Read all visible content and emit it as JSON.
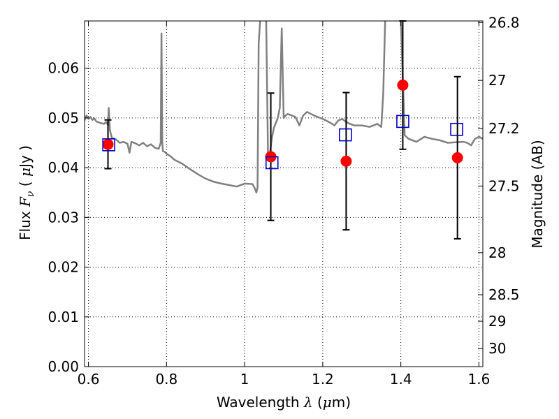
{
  "chart_data": {
    "type": "scatter",
    "xlabel": {
      "prefix": "Wavelength",
      "symbol": "λ",
      "unit_open": " (",
      "unit_mu": "μ",
      "unit_rest": "m)"
    },
    "ylabel": {
      "prefix": "Flux",
      "symbol": "F",
      "subscript": "ν",
      "unit_open": " ( ",
      "unit_mu": "μ",
      "unit_rest": "Jy )"
    },
    "y2label": "Magnitude (AB)",
    "xlim": [
      0.59,
      1.61
    ],
    "ylim": [
      0.0,
      0.0695
    ],
    "grid": true,
    "x_ticks": [
      {
        "v": 0.6,
        "label": "0.6"
      },
      {
        "v": 0.8,
        "label": "0.8"
      },
      {
        "v": 1.0,
        "label": "1"
      },
      {
        "v": 1.2,
        "label": "1.2"
      },
      {
        "v": 1.4,
        "label": "1.4"
      },
      {
        "v": 1.6,
        "label": "1.6"
      }
    ],
    "y_ticks": [
      {
        "v": 0.0,
        "label": "0.00"
      },
      {
        "v": 0.01,
        "label": "0.01"
      },
      {
        "v": 0.02,
        "label": "0.02"
      },
      {
        "v": 0.03,
        "label": "0.03"
      },
      {
        "v": 0.04,
        "label": "0.04"
      },
      {
        "v": 0.05,
        "label": "0.05"
      },
      {
        "v": 0.06,
        "label": "0.06"
      }
    ],
    "y2_ticks": [
      {
        "mag": 26.8,
        "label": "26.8"
      },
      {
        "mag": 27.0,
        "label": "27"
      },
      {
        "mag": 27.2,
        "label": "27.2"
      },
      {
        "mag": 27.5,
        "label": "27.5"
      },
      {
        "mag": 28.0,
        "label": "28"
      },
      {
        "mag": 28.5,
        "label": "28.5"
      },
      {
        "mag": 29.0,
        "label": "29"
      },
      {
        "mag": 30.0,
        "label": "30"
      }
    ],
    "model_spectrum": {
      "color": "#808080",
      "x": [
        0.59,
        0.595,
        0.6,
        0.605,
        0.61,
        0.615,
        0.62,
        0.63,
        0.64,
        0.645,
        0.65,
        0.652,
        0.655,
        0.66,
        0.67,
        0.68,
        0.69,
        0.7,
        0.705,
        0.71,
        0.72,
        0.73,
        0.74,
        0.75,
        0.76,
        0.77,
        0.78,
        0.785,
        0.787,
        0.789,
        0.791,
        0.795,
        0.8,
        0.81,
        0.82,
        0.84,
        0.86,
        0.88,
        0.9,
        0.92,
        0.94,
        0.96,
        0.98,
        1.0,
        1.02,
        1.025,
        1.03,
        1.033,
        1.036,
        1.04,
        1.045,
        1.05,
        1.055,
        1.06,
        1.065,
        1.07,
        1.075,
        1.08,
        1.085,
        1.09,
        1.095,
        1.1,
        1.105,
        1.11,
        1.12,
        1.13,
        1.14,
        1.15,
        1.16,
        1.17,
        1.18,
        1.2,
        1.22,
        1.23,
        1.24,
        1.25,
        1.26,
        1.27,
        1.28,
        1.3,
        1.32,
        1.34,
        1.35,
        1.355,
        1.36,
        1.365,
        1.37,
        1.38,
        1.39,
        1.4,
        1.41,
        1.42,
        1.44,
        1.46,
        1.48,
        1.5,
        1.52,
        1.54,
        1.56,
        1.57,
        1.58,
        1.59,
        1.6,
        1.61
      ],
      "y": [
        0.0495,
        0.0505,
        0.0498,
        0.0502,
        0.0496,
        0.0499,
        0.0493,
        0.049,
        0.0488,
        0.0492,
        0.0486,
        0.052,
        0.0475,
        0.046,
        0.0457,
        0.045,
        0.0452,
        0.0448,
        0.043,
        0.0452,
        0.0449,
        0.0445,
        0.045,
        0.0443,
        0.0447,
        0.044,
        0.0438,
        0.045,
        0.067,
        0.045,
        0.0433,
        0.0432,
        0.0428,
        0.0423,
        0.0416,
        0.0408,
        0.0397,
        0.0387,
        0.0378,
        0.0372,
        0.0368,
        0.0365,
        0.0362,
        0.0368,
        0.0367,
        0.036,
        0.035,
        0.036,
        0.065,
        0.07,
        0.07,
        0.07,
        0.07,
        0.042,
        0.043,
        0.046,
        0.048,
        0.049,
        0.05,
        0.052,
        0.068,
        0.05,
        0.0505,
        0.0508,
        0.0505,
        0.0502,
        0.0485,
        0.0505,
        0.0512,
        0.0508,
        0.0504,
        0.0498,
        0.049,
        0.0485,
        0.0495,
        0.0498,
        0.0492,
        0.0488,
        0.0485,
        0.0485,
        0.0482,
        0.0488,
        0.0482,
        0.055,
        0.07,
        0.07,
        0.07,
        0.07,
        0.07,
        0.07,
        0.0465,
        0.0458,
        0.0452,
        0.0462,
        0.0458,
        0.0455,
        0.045,
        0.0451,
        0.0452,
        0.045,
        0.0445,
        0.0458,
        0.0462,
        0.0458
      ]
    },
    "observed": {
      "color": "#ff0000",
      "x": [
        0.65,
        1.067,
        1.26,
        1.405,
        1.545
      ],
      "y": [
        0.0447,
        0.0422,
        0.0413,
        0.0566,
        0.042
      ],
      "err": [
        0.0049,
        0.0128,
        0.0138,
        0.0129,
        0.0163
      ]
    },
    "model_photometry": {
      "color": "#0000cc",
      "x": [
        0.652,
        1.07,
        1.258,
        1.405,
        1.543
      ],
      "y": [
        0.0446,
        0.041,
        0.0466,
        0.0493,
        0.0477
      ]
    }
  }
}
